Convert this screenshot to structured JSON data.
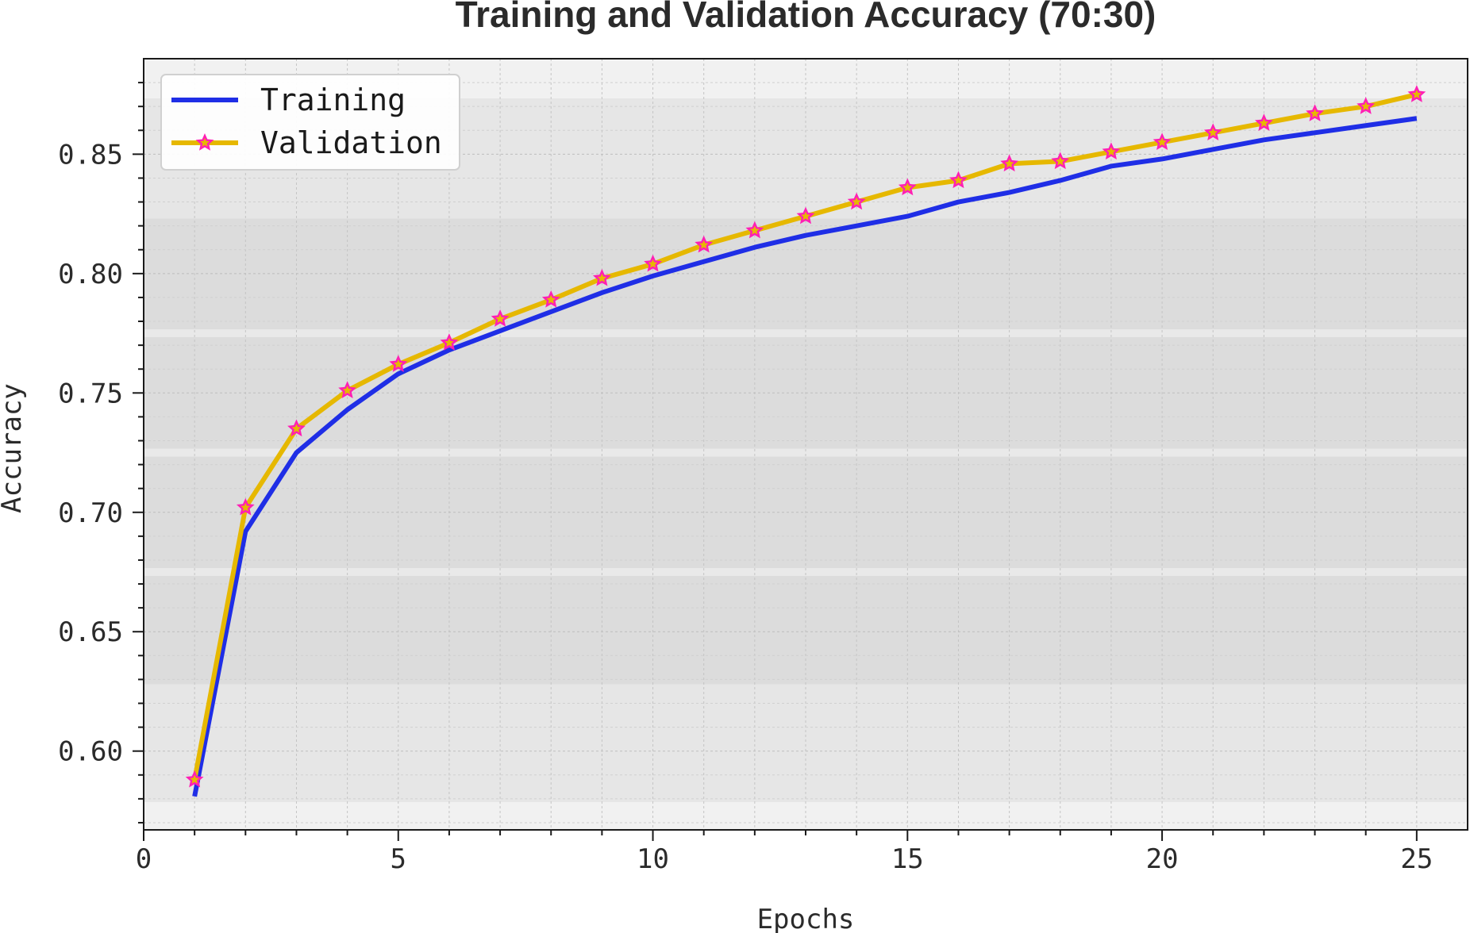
{
  "chart_data": {
    "type": "line",
    "title": "Training and Validation Accuracy (70:30)",
    "xlabel": "Epochs",
    "ylabel": "Accuracy",
    "xlim": [
      0,
      26
    ],
    "ylim": [
      0.567,
      0.89
    ],
    "x_ticks": [
      0,
      5,
      10,
      15,
      20,
      25
    ],
    "x_tick_labels": [
      "0",
      "5",
      "10",
      "15",
      "20",
      "25"
    ],
    "y_ticks": [
      0.6,
      0.65,
      0.7,
      0.75,
      0.8,
      0.85
    ],
    "y_tick_labels": [
      "0.60",
      "0.65",
      "0.70",
      "0.75",
      "0.80",
      "0.85"
    ],
    "grid": true,
    "legend_position": "top-left",
    "x": [
      1,
      2,
      3,
      4,
      5,
      6,
      7,
      8,
      9,
      10,
      11,
      12,
      13,
      14,
      15,
      16,
      17,
      18,
      19,
      20,
      21,
      22,
      23,
      24,
      25
    ],
    "series": [
      {
        "name": "Training",
        "color": "#1f2ee6",
        "marker": "none",
        "values": [
          0.581,
          0.692,
          0.725,
          0.743,
          0.758,
          0.768,
          0.776,
          0.784,
          0.792,
          0.799,
          0.805,
          0.811,
          0.816,
          0.82,
          0.824,
          0.83,
          0.834,
          0.839,
          0.845,
          0.848,
          0.852,
          0.856,
          0.859,
          0.862,
          0.865
        ]
      },
      {
        "name": "Validation",
        "color": "#e6b800",
        "marker": "star",
        "marker_color": "#ff1fb4",
        "values": [
          0.588,
          0.702,
          0.735,
          0.751,
          0.762,
          0.771,
          0.781,
          0.789,
          0.798,
          0.804,
          0.812,
          0.818,
          0.824,
          0.83,
          0.836,
          0.839,
          0.846,
          0.847,
          0.851,
          0.855,
          0.859,
          0.863,
          0.867,
          0.87,
          0.875
        ]
      }
    ]
  }
}
